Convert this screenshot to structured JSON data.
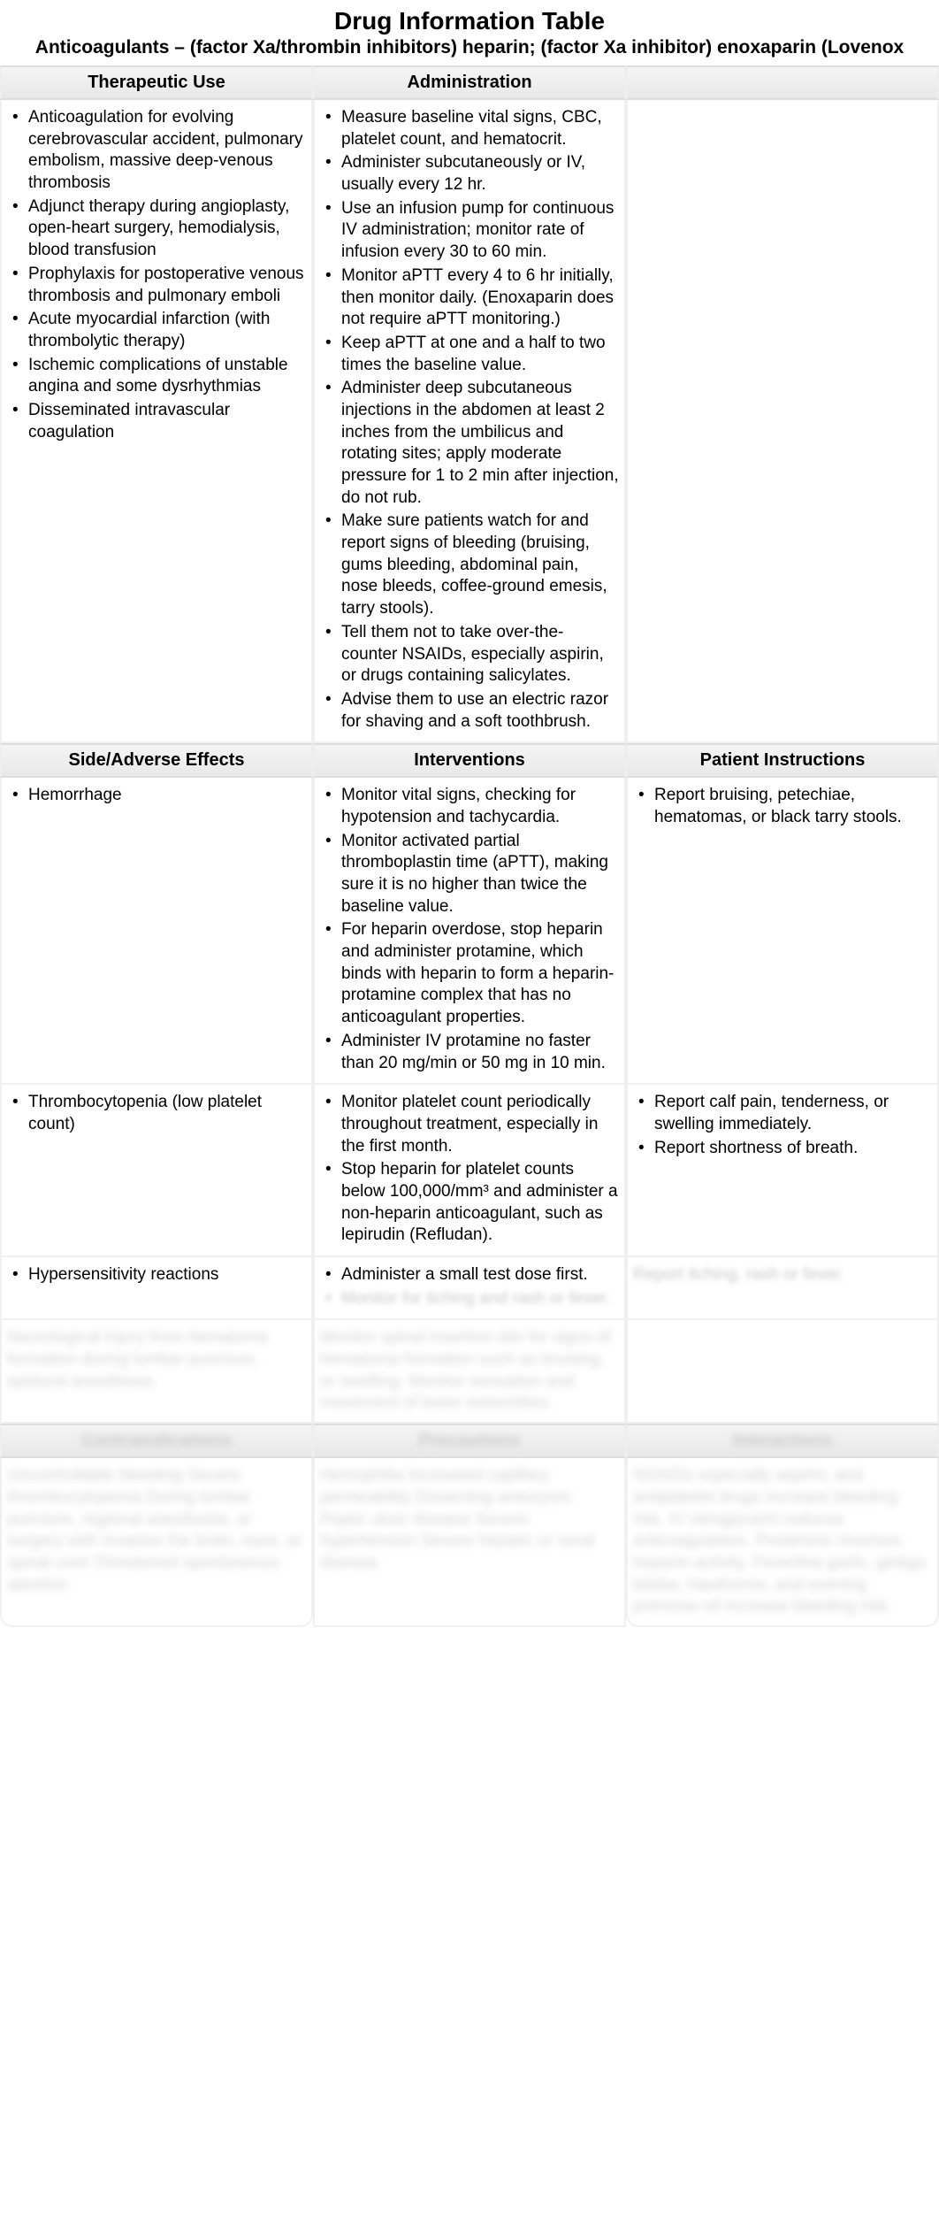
{
  "title": "Drug Information Table",
  "subtitle": "Anticoagulants – (factor Xa/thrombin inhibitors) heparin; (factor Xa inhibitor) enoxaparin (Lovenox",
  "section1": {
    "headers": [
      "Therapeutic Use",
      "Administration",
      ""
    ],
    "col1": [
      "Anticoagulation for evolving cerebrovascular accident, pulmonary embolism, massive deep-venous thrombosis",
      "Adjunct therapy during angioplasty, open-heart surgery, hemodialysis, blood transfusion",
      "Prophylaxis for postoperative venous thrombosis and pulmonary emboli",
      "Acute myocardial infarction (with thrombolytic therapy)",
      "Ischemic complications of unstable angina and some dysrhythmias",
      "Disseminated intravascular coagulation"
    ],
    "col2": [
      "Measure baseline vital signs, CBC, platelet count, and hematocrit.",
      "Administer subcutaneously or IV, usually every 12 hr.",
      "Use an infusion pump for continuous IV administration; monitor rate of infusion every 30 to 60 min.",
      "Monitor aPTT every 4 to 6 hr initially, then monitor daily. (Enoxaparin does not require aPTT monitoring.)",
      "Keep aPTT at one and a half to two times the baseline value.",
      "Administer deep subcutaneous injections in the abdomen at least 2 inches from the umbilicus and rotating sites; apply moderate pressure for 1 to 2 min after injection, do not rub.",
      "Make sure patients watch for and report signs of bleeding (bruising, gums bleeding, abdominal pain, nose bleeds, coffee-ground emesis, tarry stools).",
      "Tell them not to take over-the-counter NSAIDs, especially aspirin, or drugs containing salicylates.",
      "Advise them to use an electric razor for shaving and a soft toothbrush."
    ]
  },
  "section2": {
    "headers": [
      "Side/Adverse Effects",
      "Interventions",
      "Patient Instructions"
    ],
    "row1": {
      "c1": [
        "Hemorrhage"
      ],
      "c2": [
        "Monitor vital signs, checking for hypotension and tachycardia.",
        "Monitor activated partial thromboplastin time (aPTT), making sure it is no higher than twice the baseline value.",
        "For heparin overdose, stop heparin and administer protamine, which binds with heparin to form a heparin-protamine complex that has no anticoagulant properties.",
        "Administer IV protamine no faster than 20 mg/min or 50 mg in 10 min."
      ],
      "c3": [
        "Report bruising, petechiae, hematomas, or black tarry stools."
      ]
    },
    "row2": {
      "c1": [
        "Thrombocytopenia (low platelet count)"
      ],
      "c2": [
        "Monitor platelet count periodically throughout treatment, especially in the first month.",
        "Stop heparin for platelet counts below 100,000/mm³ and administer a non-heparin anticoagulant, such as lepirudin (Refludan)."
      ],
      "c3": [
        "Report calf pain, tenderness, or swelling immediately.",
        "Report shortness of breath."
      ]
    },
    "row3": {
      "c1": [
        "Hypersensitivity reactions"
      ],
      "c2_clear": "Administer a small test dose first.",
      "c2_blur": "Monitor for itching and rash or fever.",
      "c3_blur": "Report itching, rash or fever."
    },
    "row4_blur": {
      "c1": "Neurological injury from hematoma formation during lumbar puncture, epidural anesthesia",
      "c2": "Monitor spinal insertion site for signs of hematoma formation such as bruising or swelling. Monitor sensation and movement of lower extremities.",
      "c3": ""
    }
  },
  "section3_blur": {
    "headers": [
      "Contraindications",
      "Precautions",
      "Interactions"
    ],
    "c1": "Uncontrollable bleeding Severe thrombocytopenia During lumbar puncture, regional anesthesia, or surgery with invasive the brain, eyes, or spinal cord Threatened spontaneous abortion",
    "c2": "Hemophilia Increased capillary permeability Dissecting aneurysm Peptic ulcer disease Severe hypertension Severe hepatic or renal disease",
    "c3": "NSAIDs especially aspirin, and antiplatelet drugs increase bleeding risk. IV nitroglycerin reduces anticoagulation. Protamine reverses heparin activity. Feverfew garlic, ginkgo biloba, hawthorne, and evening primrose oil increase bleeding risk."
  },
  "colors": {
    "header_bg_top": "#f5f5f5",
    "header_bg_bottom": "#e8e8e8",
    "border": "#eee",
    "text": "#000000",
    "blur_text": "#888888"
  }
}
